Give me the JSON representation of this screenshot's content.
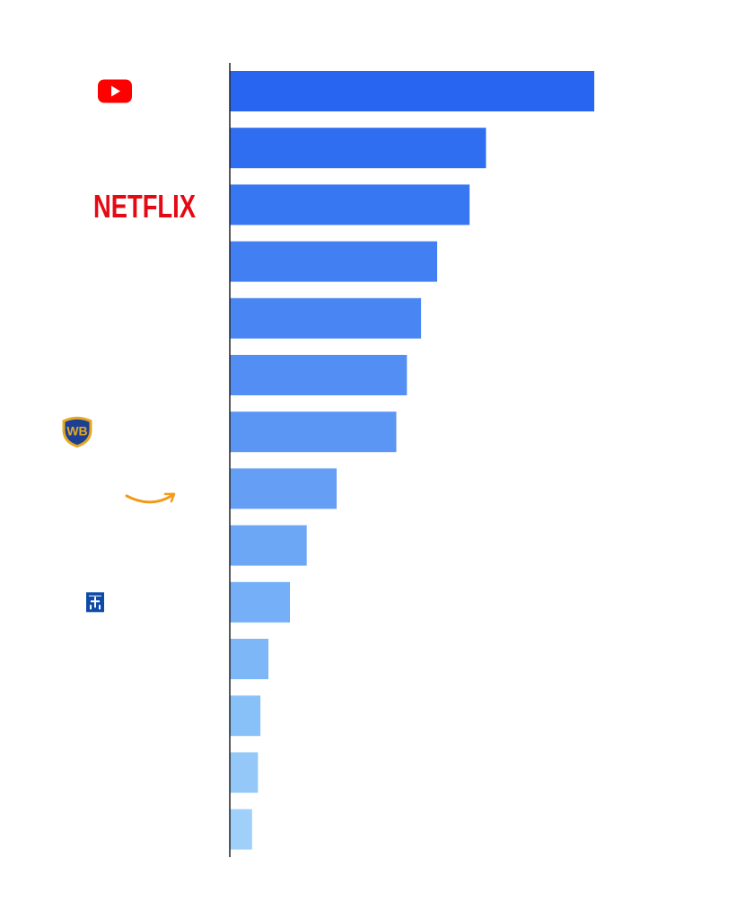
{
  "chart_data": {
    "type": "bar",
    "orientation": "horizontal",
    "categories": [
      {
        "logo": "youtube-logo",
        "text": ""
      },
      {
        "logo": "",
        "text": ""
      },
      {
        "logo": "netflix-logo",
        "text": "NETFLIX"
      },
      {
        "logo": "",
        "text": ""
      },
      {
        "logo": "",
        "text": ""
      },
      {
        "logo": "",
        "text": ""
      },
      {
        "logo": "warner-bros-logo",
        "text": "WB"
      },
      {
        "logo": "amazon-logo",
        "text": ""
      },
      {
        "logo": "",
        "text": ""
      },
      {
        "logo": "paramount-logo",
        "text": ""
      },
      {
        "logo": "",
        "text": ""
      },
      {
        "logo": "",
        "text": ""
      },
      {
        "logo": "",
        "text": ""
      },
      {
        "logo": "",
        "text": ""
      }
    ],
    "values": [
      100,
      70.3,
      65.8,
      56.9,
      52.5,
      48.6,
      45.7,
      29.3,
      21.1,
      16.5,
      10.6,
      8.4,
      7.7,
      6.1
    ],
    "xlim": [
      0,
      100
    ],
    "colors": [
      "#2866f1",
      "#2f6ef1",
      "#3877f2",
      "#417ff3",
      "#4a86f3",
      "#538ef4",
      "#5b96f5",
      "#649ef5",
      "#6ca7f6",
      "#75aff7",
      "#7eb7f7",
      "#88c0f8",
      "#93c8f9",
      "#9fd0fa"
    ],
    "axis_color": "#222222",
    "grid": false,
    "legend": "none"
  }
}
